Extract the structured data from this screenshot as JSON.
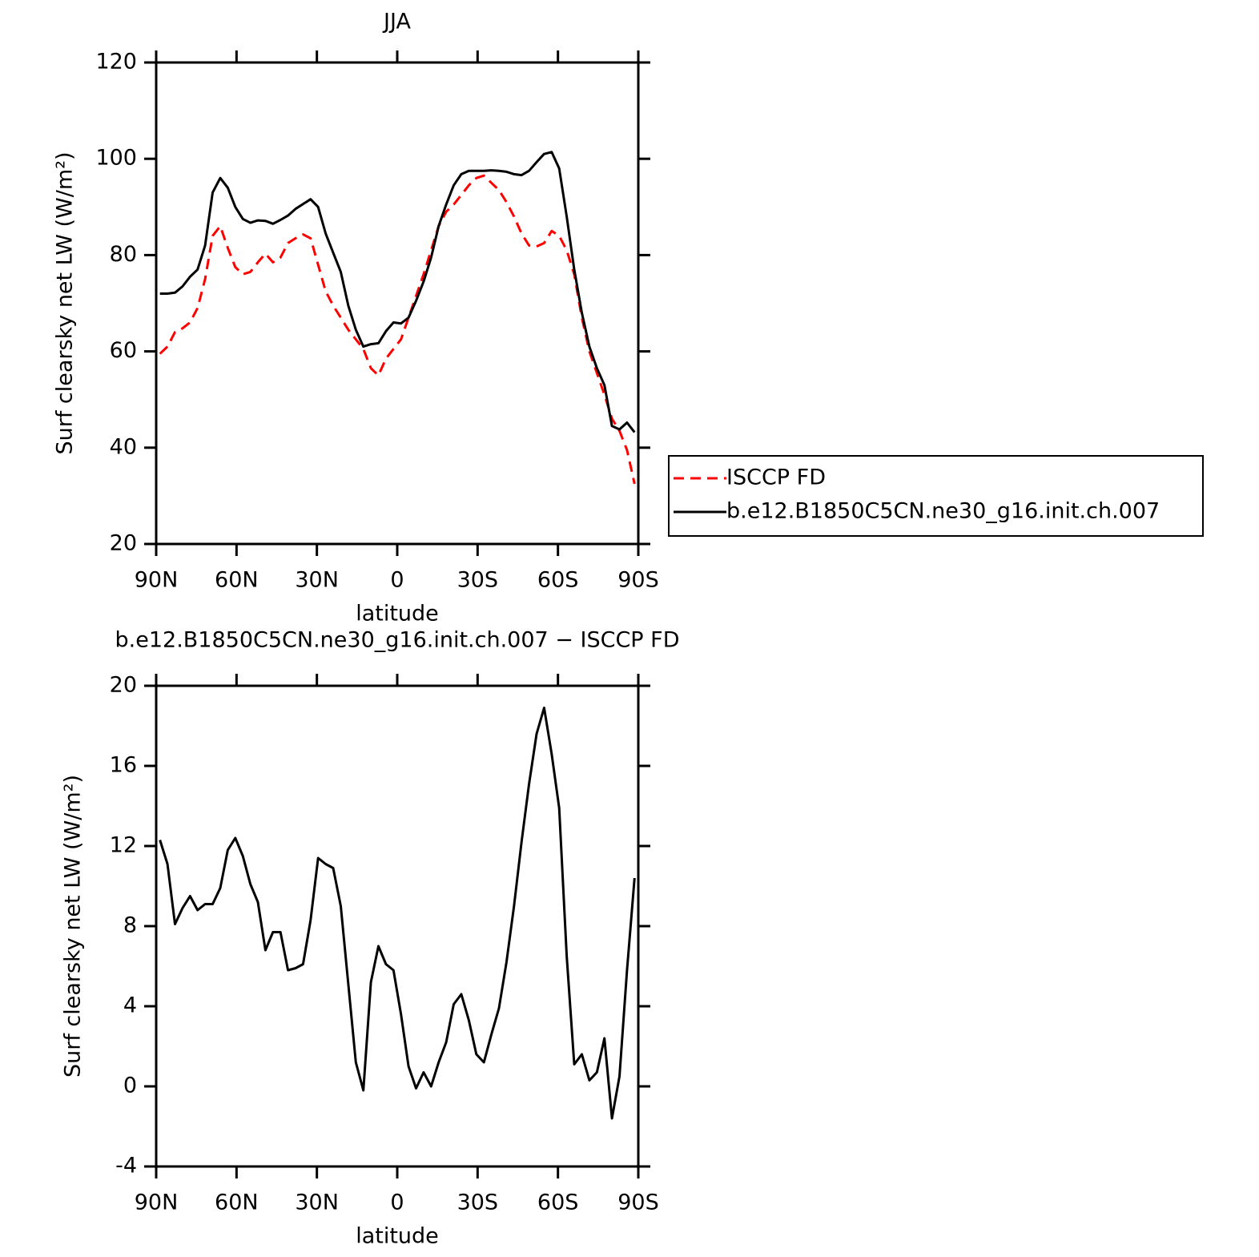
{
  "chart_data": [
    {
      "type": "line",
      "title": "JJA",
      "xlabel": "latitude",
      "ylabel": "Surf clearsky net LW (W/m²)",
      "x": [
        88.59,
        85.78,
        82.97,
        80.16,
        77.34,
        74.53,
        71.72,
        68.91,
        66.09,
        63.28,
        60.47,
        57.66,
        54.84,
        52.03,
        49.22,
        46.41,
        43.59,
        40.78,
        37.97,
        35.16,
        32.34,
        29.53,
        26.72,
        23.91,
        21.09,
        18.28,
        15.47,
        12.66,
        9.84,
        7.03,
        4.22,
        1.41,
        -1.41,
        -4.22,
        -7.03,
        -9.84,
        -12.66,
        -15.47,
        -18.28,
        -21.09,
        -23.91,
        -26.72,
        -29.53,
        -32.34,
        -35.16,
        -37.97,
        -40.78,
        -43.59,
        -46.41,
        -49.22,
        -52.03,
        -54.84,
        -57.66,
        -60.47,
        -63.28,
        -66.09,
        -68.91,
        -71.72,
        -74.53,
        -77.34,
        -80.16,
        -82.97,
        -85.78,
        -88.59
      ],
      "series": [
        {
          "name": "ISCCP FD",
          "color": "#ff0000",
          "linestyle": "dashed",
          "values": [
            59.5,
            61,
            64,
            64.8,
            66,
            69,
            75,
            84,
            86,
            81.5,
            77.5,
            76,
            76.5,
            78.5,
            80.3,
            78.5,
            79.5,
            82.5,
            83.5,
            84.3,
            83.5,
            78,
            72.5,
            69.5,
            67,
            64.5,
            62.5,
            60.5,
            56.5,
            55,
            58.5,
            60.5,
            62.5,
            67,
            71.5,
            76,
            81,
            86,
            89,
            90.5,
            92.5,
            94.5,
            96,
            96.5,
            95,
            93.5,
            91,
            88,
            84.5,
            82,
            81.8,
            82.5,
            85,
            84,
            81,
            76,
            67,
            60,
            55.5,
            51,
            46,
            43.5,
            39.5,
            32.5
          ]
        },
        {
          "name": "b.e12.B1850C5CN.ne30_g16.init.ch.007",
          "color": "#000000",
          "linestyle": "solid",
          "values": [
            72,
            72,
            72.2,
            73.5,
            75.5,
            77,
            82,
            93,
            96,
            94,
            90,
            87.5,
            86.7,
            87.2,
            87.1,
            86.5,
            87.3,
            88.2,
            89.6,
            90.6,
            91.6,
            90,
            84.5,
            80.5,
            76.5,
            69.5,
            64.5,
            61,
            61.5,
            61.7,
            64.2,
            66,
            65.8,
            67,
            70.5,
            74.5,
            79.5,
            86,
            90.5,
            94.5,
            96.8,
            97.5,
            97.5,
            97.5,
            97.6,
            97.5,
            97.3,
            96.8,
            96.6,
            97.5,
            99.3,
            101,
            101.4,
            98,
            88,
            77,
            68,
            61,
            56.5,
            53,
            44.5,
            43.8,
            45.2,
            43.2
          ]
        }
      ],
      "xlim": [
        90,
        -90
      ],
      "xticks": [
        {
          "value": 90,
          "label": "90N"
        },
        {
          "value": 60,
          "label": "60N"
        },
        {
          "value": 30,
          "label": "30N"
        },
        0,
        {
          "value": -30,
          "label": "30S"
        },
        {
          "value": -60,
          "label": "60S"
        },
        {
          "value": -90,
          "label": "90S"
        }
      ],
      "ylim": [
        20,
        120
      ],
      "yticks": [
        20,
        40,
        60,
        80,
        100,
        120
      ],
      "legend": "outside right"
    },
    {
      "type": "line",
      "title": "b.e12.B1850C5CN.ne30_g16.init.ch.007 − ISCCP FD",
      "xlabel": "latitude",
      "ylabel": "Surf clearsky net LW (W/m²)",
      "x": [
        88.59,
        85.78,
        82.97,
        80.16,
        77.34,
        74.53,
        71.72,
        68.91,
        66.09,
        63.28,
        60.47,
        57.66,
        54.84,
        52.03,
        49.22,
        46.41,
        43.59,
        40.78,
        37.97,
        35.16,
        32.34,
        29.53,
        26.72,
        23.91,
        21.09,
        18.28,
        15.47,
        12.66,
        9.84,
        7.03,
        4.22,
        1.41,
        -1.41,
        -4.22,
        -7.03,
        -9.84,
        -12.66,
        -15.47,
        -18.28,
        -21.09,
        -23.91,
        -26.72,
        -29.53,
        -32.34,
        -35.16,
        -37.97,
        -40.78,
        -43.59,
        -46.41,
        -49.22,
        -52.03,
        -54.84,
        -57.66,
        -60.47,
        -63.28,
        -66.09,
        -68.91,
        -71.72,
        -74.53,
        -77.34,
        -80.16,
        -82.97,
        -85.78,
        -88.59
      ],
      "values": [
        12.3,
        11.1,
        8.1,
        8.9,
        9.5,
        8.8,
        9.1,
        9.1,
        9.9,
        11.8,
        12.4,
        11.5,
        10.1,
        9.2,
        6.8,
        7.7,
        7.7,
        5.8,
        5.9,
        6.1,
        8.3,
        11.4,
        11.1,
        10.9,
        9,
        5.1,
        1.2,
        -0.2,
        5.2,
        7,
        6.1,
        5.8,
        3.6,
        1,
        -0.1,
        0.7,
        0,
        1.2,
        2.2,
        4.1,
        4.6,
        3.3,
        1.6,
        1.2,
        2.6,
        3.9,
        6.2,
        9,
        12.2,
        15.1,
        17.6,
        18.9,
        16.6,
        13.9,
        6.5,
        1.1,
        1.6,
        0.3,
        0.7,
        2.4,
        -1.6,
        0.5,
        5.8,
        10.4
      ],
      "color": "#000000",
      "xlim": [
        90,
        -90
      ],
      "xticks": [
        {
          "value": 90,
          "label": "90N"
        },
        {
          "value": 60,
          "label": "60N"
        },
        {
          "value": 30,
          "label": "30N"
        },
        0,
        {
          "value": -30,
          "label": "30S"
        },
        {
          "value": -60,
          "label": "60S"
        },
        {
          "value": -90,
          "label": "90S"
        }
      ],
      "ylim": [
        -4,
        20
      ],
      "yticks": [
        -4,
        0,
        4,
        8,
        12,
        16,
        20
      ]
    }
  ]
}
